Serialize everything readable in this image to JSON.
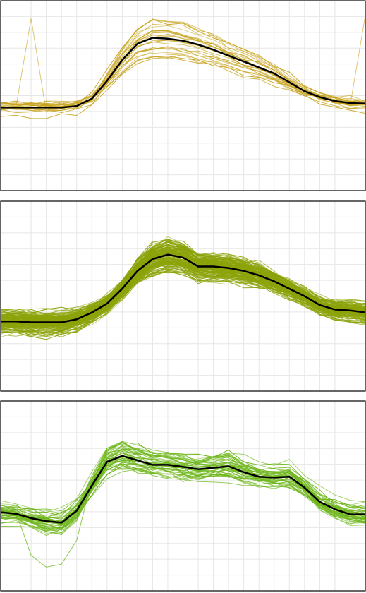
{
  "figure": {
    "theme": {
      "background": "#ffffff",
      "panel_border": "#000000",
      "grid": "#e6e6e6",
      "mean_line": "#000000"
    }
  },
  "chart_data": [
    {
      "type": "line",
      "title": "",
      "color": "#c6a21b",
      "x": [
        0,
        1,
        2,
        3,
        4,
        5,
        6,
        7,
        8,
        9,
        10,
        11,
        12,
        13,
        14,
        15,
        16,
        17,
        18,
        19,
        20,
        21,
        22,
        23,
        24
      ],
      "xlim": [
        0,
        24
      ],
      "ylim": [
        -3.2,
        3.2
      ],
      "grid": true,
      "n_minor_x": 24,
      "n_minor_y": 12,
      "mean": [
        -0.4,
        -0.4,
        -0.4,
        -0.4,
        -0.4,
        -0.35,
        -0.1,
        0.5,
        1.2,
        1.75,
        1.95,
        1.92,
        1.85,
        1.72,
        1.55,
        1.35,
        1.15,
        0.95,
        0.75,
        0.45,
        0.15,
        -0.05,
        -0.18,
        -0.25,
        -0.27
      ],
      "series_count": 24,
      "spread": 0.32,
      "spike": {
        "series": 0,
        "points": [
          [
            2,
            2.6
          ],
          [
            4,
            -0.2
          ],
          [
            24,
            2.7
          ]
        ]
      }
    },
    {
      "type": "line",
      "title": "",
      "color": "#8ca30a",
      "x": [
        0,
        1,
        2,
        3,
        4,
        5,
        6,
        7,
        8,
        9,
        10,
        11,
        12,
        13,
        14,
        15,
        16,
        17,
        18,
        19,
        20,
        21,
        22,
        23,
        24
      ],
      "xlim": [
        0,
        24
      ],
      "ylim": [
        -3.2,
        3.2
      ],
      "grid": true,
      "n_minor_x": 24,
      "n_minor_y": 12,
      "mean": [
        -0.85,
        -0.85,
        -0.88,
        -0.88,
        -0.88,
        -0.78,
        -0.55,
        -0.25,
        0.25,
        0.85,
        1.25,
        1.4,
        1.3,
        1.0,
        1.0,
        0.95,
        0.85,
        0.7,
        0.5,
        0.25,
        0.0,
        -0.3,
        -0.45,
        -0.48,
        -0.55
      ],
      "series_count": 150,
      "spread": 0.42,
      "spike": null
    },
    {
      "type": "line",
      "title": "",
      "color": "#6db61a",
      "x": [
        0,
        1,
        2,
        3,
        4,
        5,
        6,
        7,
        8,
        9,
        10,
        11,
        12,
        13,
        14,
        15,
        16,
        17,
        18,
        19,
        20,
        21,
        22,
        23,
        24
      ],
      "xlim": [
        0,
        24
      ],
      "ylim": [
        -3.2,
        3.2
      ],
      "grid": true,
      "n_minor_x": 24,
      "n_minor_y": 12,
      "mean": [
        -0.55,
        -0.6,
        -0.75,
        -0.85,
        -0.9,
        -0.5,
        0.35,
        1.15,
        1.35,
        1.2,
        1.05,
        1.05,
        0.98,
        0.9,
        0.95,
        1.0,
        0.8,
        0.65,
        0.62,
        0.65,
        0.28,
        -0.2,
        -0.45,
        -0.62,
        -0.62
      ],
      "series_count": 45,
      "spread": 0.55,
      "spike": {
        "series": 0,
        "points": [
          [
            2,
            -2.0
          ],
          [
            3,
            -2.4
          ],
          [
            4,
            -2.3
          ],
          [
            5,
            -1.5
          ]
        ]
      }
    }
  ]
}
